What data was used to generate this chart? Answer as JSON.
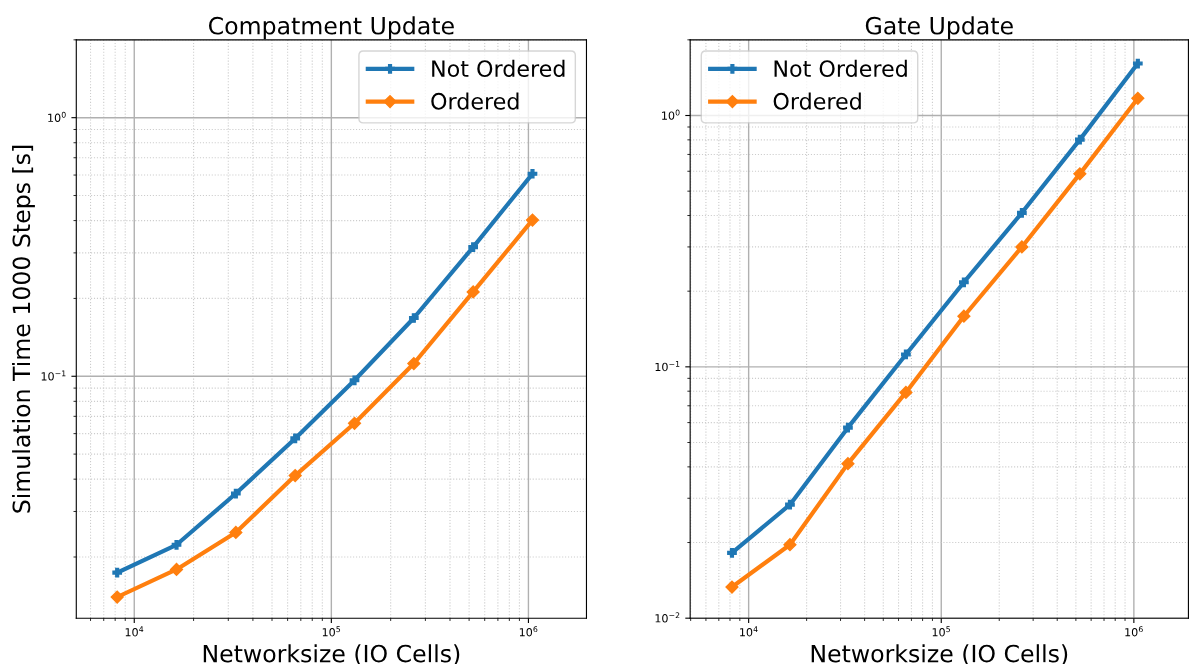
{
  "chart_data": [
    {
      "type": "line",
      "title": "Compatment Update",
      "xlabel": "Networksize (IO Cells)",
      "ylabel": "Simulation Time 1000 Steps [s]",
      "x": [
        8192,
        16384,
        32768,
        65536,
        131072,
        262144,
        524288,
        1048576
      ],
      "series": [
        {
          "name": "Not Ordered",
          "color": "#1f77b4",
          "marker": "cross",
          "values": [
            0.0174,
            0.0223,
            0.0352,
            0.0575,
            0.0965,
            0.168,
            0.316,
            0.607
          ]
        },
        {
          "name": "Ordered",
          "color": "#ff7f0e",
          "marker": "diamond",
          "values": [
            0.014,
            0.0179,
            0.0249,
            0.0413,
            0.0658,
            0.112,
            0.212,
            0.402
          ]
        }
      ],
      "log": "xy",
      "xlim": [
        5080,
        1970000
      ],
      "ylim": [
        0.0116,
        2.0
      ],
      "xticks": [
        {
          "value": 10000,
          "label": "10$^{4}$"
        },
        {
          "value": 100000,
          "label": "10$^{5}$"
        },
        {
          "value": 1000000,
          "label": "10$^{6}$"
        }
      ],
      "yticks": [
        {
          "value": 0.1,
          "label": "10$^{−1}$"
        },
        {
          "value": 1,
          "label": "10$^{0}$"
        }
      ],
      "grid": true,
      "legend": "top right",
      "line_style": "solid"
    },
    {
      "type": "line",
      "title": "Gate Update",
      "xlabel": "Networksize (IO Cells)",
      "x": [
        8192,
        16384,
        32768,
        65536,
        131072,
        262144,
        524288,
        1048576
      ],
      "series": [
        {
          "name": "Not Ordered",
          "color": "#1f77b4",
          "marker": "cross",
          "values": [
            0.0182,
            0.0283,
            0.0573,
            0.112,
            0.217,
            0.41,
            0.802,
            1.61
          ]
        },
        {
          "name": "Ordered",
          "color": "#ff7f0e",
          "marker": "diamond",
          "values": [
            0.0133,
            0.0196,
            0.0412,
            0.0791,
            0.159,
            0.3,
            0.586,
            1.17
          ]
        }
      ],
      "log": "xy",
      "xlim": [
        4970,
        1920000
      ],
      "ylim": [
        0.01,
        2.0
      ],
      "xticks": [
        {
          "value": 10000,
          "label": "10$^{4}$"
        },
        {
          "value": 100000,
          "label": "10$^{5}$"
        },
        {
          "value": 1000000,
          "label": "10$^{6}$"
        }
      ],
      "yticks": [
        {
          "value": 0.01,
          "label": "10$^{−2}$"
        },
        {
          "value": 0.1,
          "label": "10$^{−1}$"
        },
        {
          "value": 1,
          "label": "10$^{0}$"
        }
      ],
      "grid": true,
      "legend": "top left",
      "line_style": "solid"
    }
  ]
}
